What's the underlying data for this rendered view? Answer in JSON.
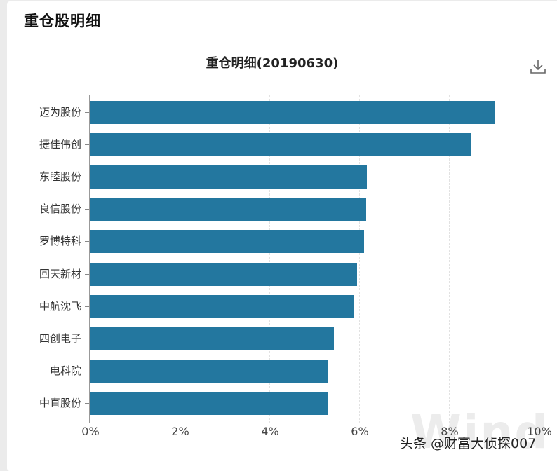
{
  "card": {
    "title": "重仓股明细"
  },
  "chart": {
    "title": "重仓明细(20190630)",
    "download_icon": "download-icon"
  },
  "watermarks": {
    "wind": "Wind",
    "toutiao": "头条 @财富大侦探007"
  },
  "colors": {
    "bar": "#23779f",
    "background": "#ebebeb"
  },
  "chart_data": {
    "type": "bar",
    "orientation": "horizontal",
    "title": "重仓明细(20190630)",
    "xlabel": "",
    "ylabel": "",
    "categories": [
      "迈为股份",
      "捷佳伟创",
      "东睦股份",
      "良信股份",
      "罗博特科",
      "回天新材",
      "中航沈飞",
      "四创电子",
      "电科院",
      "中直股份"
    ],
    "values": [
      9.02,
      8.5,
      6.17,
      6.16,
      6.11,
      5.95,
      5.88,
      5.44,
      5.31,
      5.31
    ],
    "unit": "%",
    "xlim": [
      0,
      10
    ],
    "xticks": [
      "0%",
      "2%",
      "4%",
      "6%",
      "8%",
      "10%"
    ],
    "grid": "vertical dashed",
    "legend": null
  }
}
